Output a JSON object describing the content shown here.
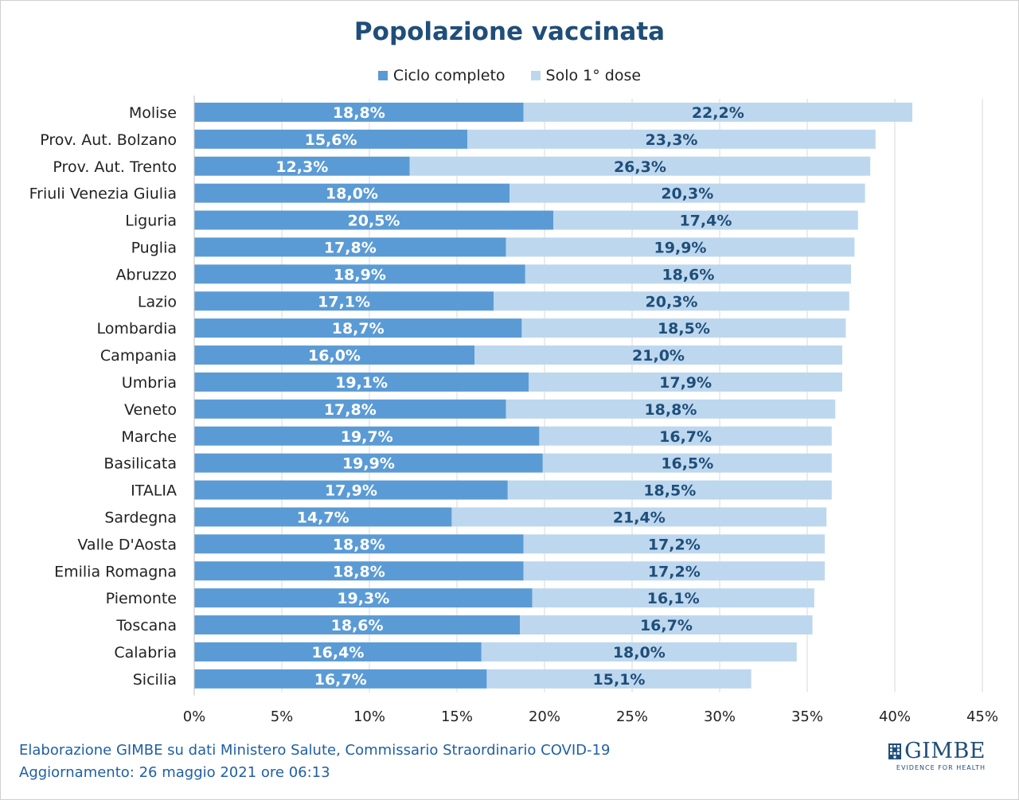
{
  "chart_data": {
    "type": "bar",
    "orientation": "horizontal",
    "stacked": true,
    "title": "Popolazione vaccinata",
    "categories": [
      "Molise",
      "Prov. Aut. Bolzano",
      "Prov. Aut. Trento",
      "Friuli Venezia Giulia",
      "Liguria",
      "Puglia",
      "Abruzzo",
      "Lazio",
      "Lombardia",
      "Campania",
      "Umbria",
      "Veneto",
      "Marche",
      "Basilicata",
      "ITALIA",
      "Sardegna",
      "Valle D'Aosta",
      "Emilia Romagna",
      "Piemonte",
      "Toscana",
      "Calabria",
      "Sicilia"
    ],
    "series": [
      {
        "name": "Ciclo completo",
        "color": "#5b9bd5",
        "label_color": "#ffffff",
        "values": [
          18.8,
          15.6,
          12.3,
          18.0,
          20.5,
          17.8,
          18.9,
          17.1,
          18.7,
          16.0,
          19.1,
          17.8,
          19.7,
          19.9,
          17.9,
          14.7,
          18.8,
          18.8,
          19.3,
          18.6,
          16.4,
          16.7
        ],
        "labels": [
          "18,8%",
          "15,6%",
          "12,3%",
          "18,0%",
          "20,5%",
          "17,8%",
          "18,9%",
          "17,1%",
          "18,7%",
          "16,0%",
          "19,1%",
          "17,8%",
          "19,7%",
          "19,9%",
          "17,9%",
          "14,7%",
          "18,8%",
          "18,8%",
          "19,3%",
          "18,6%",
          "16,4%",
          "16,7%"
        ]
      },
      {
        "name": "Solo 1° dose",
        "color": "#bdd7ee",
        "label_color": "#1f4e79",
        "values": [
          22.2,
          23.3,
          26.3,
          20.3,
          17.4,
          19.9,
          18.6,
          20.3,
          18.5,
          21.0,
          17.9,
          18.8,
          16.7,
          16.5,
          18.5,
          21.4,
          17.2,
          17.2,
          16.1,
          16.7,
          18.0,
          15.1
        ],
        "labels": [
          "22,2%",
          "23,3%",
          "26,3%",
          "20,3%",
          "17,4%",
          "19,9%",
          "18,6%",
          "20,3%",
          "18,5%",
          "21,0%",
          "17,9%",
          "18,8%",
          "16,7%",
          "16,5%",
          "18,5%",
          "21,4%",
          "17,2%",
          "17,2%",
          "16,1%",
          "16,7%",
          "18,0%",
          "15,1%"
        ]
      }
    ],
    "xlim": [
      0,
      45
    ],
    "xticks": [
      0,
      5,
      10,
      15,
      20,
      25,
      30,
      35,
      40,
      45
    ],
    "xtick_labels": [
      "0%",
      "5%",
      "10%",
      "15%",
      "20%",
      "25%",
      "30%",
      "35%",
      "40%",
      "45%"
    ],
    "grid": true,
    "legend_position": "top"
  },
  "footer": {
    "line1": "Elaborazione GIMBE su dati Ministero Salute, Commissario Straordinario COVID-19",
    "line2": "Aggiornamento: 26 maggio 2021 ore 06:13"
  },
  "logo": {
    "name": "GIMBE",
    "tagline": "EVIDENCE FOR HEALTH",
    "color": "#1f4e79"
  }
}
